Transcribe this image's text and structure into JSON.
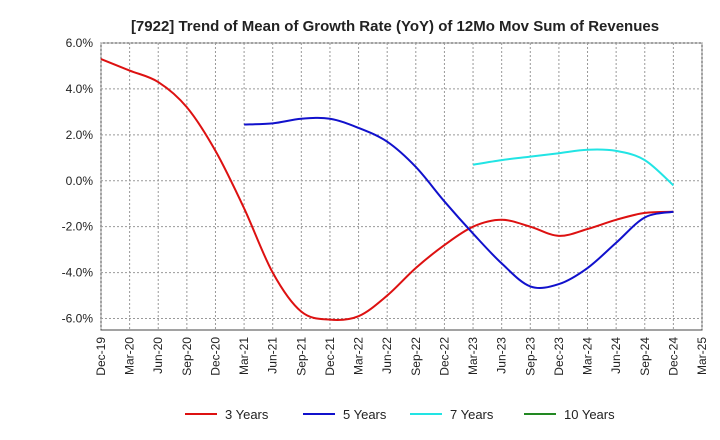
{
  "chart_data": {
    "type": "line",
    "title": "[7922]  Trend of Mean of Growth Rate (YoY) of 12Mo Mov Sum of Revenues",
    "xlabel": "",
    "ylabel": "",
    "ylim": [
      -6.5,
      6.0
    ],
    "y_ticks": [
      6.0,
      4.0,
      2.0,
      0.0,
      -2.0,
      -4.0,
      -6.0
    ],
    "y_tick_labels": [
      "6.0%",
      "4.0%",
      "2.0%",
      "0.0%",
      "-2.0%",
      "-4.0%",
      "-6.0%"
    ],
    "x_tick_labels": [
      "Dec-19",
      "Mar-20",
      "Jun-20",
      "Sep-20",
      "Dec-20",
      "Mar-21",
      "Jun-21",
      "Sep-21",
      "Dec-21",
      "Mar-22",
      "Jun-22",
      "Sep-22",
      "Dec-22",
      "Mar-23",
      "Jun-23",
      "Sep-23",
      "Dec-23",
      "Mar-24",
      "Jun-24",
      "Sep-24",
      "Dec-24",
      "Mar-25"
    ],
    "grid": true,
    "legend_position": "bottom",
    "series": [
      {
        "name": "3 Years",
        "color": "#dd1111",
        "points": [
          [
            0,
            5.3
          ],
          [
            1,
            4.8
          ],
          [
            2,
            4.3
          ],
          [
            3,
            3.2
          ],
          [
            4,
            1.3
          ],
          [
            5,
            -1.2
          ],
          [
            6,
            -4.0
          ],
          [
            7,
            -5.7
          ],
          [
            8,
            -6.05
          ],
          [
            9,
            -5.9
          ],
          [
            10,
            -5.0
          ],
          [
            11,
            -3.8
          ],
          [
            12,
            -2.8
          ],
          [
            13,
            -2.0
          ],
          [
            14,
            -1.7
          ],
          [
            15,
            -2.0
          ],
          [
            16,
            -2.4
          ],
          [
            17,
            -2.1
          ],
          [
            18,
            -1.7
          ],
          [
            19,
            -1.4
          ],
          [
            20,
            -1.35
          ]
        ]
      },
      {
        "name": "5 Years",
        "color": "#1111cc",
        "points": [
          [
            5,
            2.45
          ],
          [
            6,
            2.5
          ],
          [
            7,
            2.7
          ],
          [
            8,
            2.7
          ],
          [
            9,
            2.3
          ],
          [
            10,
            1.7
          ],
          [
            11,
            0.6
          ],
          [
            12,
            -0.9
          ],
          [
            13,
            -2.3
          ],
          [
            14,
            -3.6
          ],
          [
            15,
            -4.6
          ],
          [
            16,
            -4.5
          ],
          [
            17,
            -3.8
          ],
          [
            18,
            -2.7
          ],
          [
            19,
            -1.6
          ],
          [
            20,
            -1.35
          ]
        ]
      },
      {
        "name": "7 Years",
        "color": "#22e4e4",
        "points": [
          [
            13,
            0.7
          ],
          [
            14,
            0.9
          ],
          [
            15,
            1.05
          ],
          [
            16,
            1.2
          ],
          [
            17,
            1.35
          ],
          [
            18,
            1.3
          ],
          [
            19,
            0.9
          ],
          [
            20,
            -0.2
          ]
        ]
      },
      {
        "name": "10 Years",
        "color": "#228822",
        "points": []
      }
    ]
  }
}
